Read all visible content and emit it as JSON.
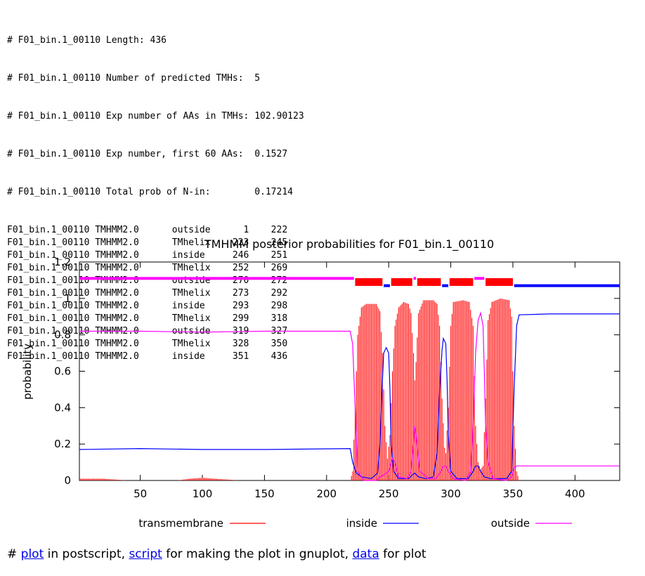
{
  "header_lines": [
    "# F01_bin.1_00110 Length: 436",
    "# F01_bin.1_00110 Number of predicted TMHs:  5",
    "# F01_bin.1_00110 Exp number of AAs in TMHs: 102.90123",
    "# F01_bin.1_00110 Exp number, first 60 AAs:  0.1527",
    "# F01_bin.1_00110 Total prob of N-in:        0.17214"
  ],
  "topology_rows": [
    {
      "id": "F01_bin.1_00110",
      "method": "TMHMM2.0",
      "region": "outside",
      "start": "1",
      "end": "222"
    },
    {
      "id": "F01_bin.1_00110",
      "method": "TMHMM2.0",
      "region": "TMhelix",
      "start": "223",
      "end": "245"
    },
    {
      "id": "F01_bin.1_00110",
      "method": "TMHMM2.0",
      "region": "inside",
      "start": "246",
      "end": "251"
    },
    {
      "id": "F01_bin.1_00110",
      "method": "TMHMM2.0",
      "region": "TMhelix",
      "start": "252",
      "end": "269"
    },
    {
      "id": "F01_bin.1_00110",
      "method": "TMHMM2.0",
      "region": "outside",
      "start": "270",
      "end": "272"
    },
    {
      "id": "F01_bin.1_00110",
      "method": "TMHMM2.0",
      "region": "TMhelix",
      "start": "273",
      "end": "292"
    },
    {
      "id": "F01_bin.1_00110",
      "method": "TMHMM2.0",
      "region": "inside",
      "start": "293",
      "end": "298"
    },
    {
      "id": "F01_bin.1_00110",
      "method": "TMHMM2.0",
      "region": "TMhelix",
      "start": "299",
      "end": "318"
    },
    {
      "id": "F01_bin.1_00110",
      "method": "TMHMM2.0",
      "region": "outside",
      "start": "319",
      "end": "327"
    },
    {
      "id": "F01_bin.1_00110",
      "method": "TMHMM2.0",
      "region": "TMhelix",
      "start": "328",
      "end": "350"
    },
    {
      "id": "F01_bin.1_00110",
      "method": "TMHMM2.0",
      "region": "inside",
      "start": "351",
      "end": "436"
    }
  ],
  "chart_data": {
    "type": "line",
    "title": "TMHMM posterior probabilities for F01_bin.1_00110",
    "xlabel": "",
    "ylabel": "probability",
    "xlim": [
      1,
      436
    ],
    "ylim": [
      0,
      1.2
    ],
    "x_ticks": [
      50,
      100,
      150,
      200,
      250,
      300,
      350,
      400
    ],
    "y_ticks": [
      0,
      0.2,
      0.4,
      0.6,
      0.8,
      1,
      1.2
    ],
    "y_tick_labels": [
      "0",
      "0.2",
      "0.4",
      "0.6",
      "0.8",
      "1",
      "1.2"
    ],
    "grid": false,
    "legend_position": "bottom",
    "series": [
      {
        "name": "transmembrane",
        "color": "#ff0000",
        "style": "impulses",
        "points": [
          [
            1,
            0.0
          ],
          [
            2,
            0.01
          ],
          [
            10,
            0.01
          ],
          [
            20,
            0.01
          ],
          [
            30,
            0.005
          ],
          [
            40,
            0.0
          ],
          [
            60,
            0.0
          ],
          [
            80,
            0.0
          ],
          [
            90,
            0.01
          ],
          [
            100,
            0.015
          ],
          [
            110,
            0.01
          ],
          [
            120,
            0.005
          ],
          [
            130,
            0.0
          ],
          [
            200,
            0.0
          ],
          [
            219,
            0.0
          ],
          [
            221,
            0.05
          ],
          [
            223,
            0.4
          ],
          [
            225,
            0.8
          ],
          [
            228,
            0.95
          ],
          [
            232,
            0.97
          ],
          [
            240,
            0.97
          ],
          [
            243,
            0.93
          ],
          [
            245,
            0.7
          ],
          [
            247,
            0.3
          ],
          [
            249,
            0.12
          ],
          [
            251,
            0.25
          ],
          [
            253,
            0.6
          ],
          [
            255,
            0.85
          ],
          [
            258,
            0.95
          ],
          [
            262,
            0.98
          ],
          [
            266,
            0.97
          ],
          [
            268,
            0.92
          ],
          [
            270,
            0.7
          ],
          [
            271,
            0.55
          ],
          [
            272,
            0.65
          ],
          [
            274,
            0.92
          ],
          [
            278,
            0.99
          ],
          [
            286,
            0.99
          ],
          [
            289,
            0.97
          ],
          [
            291,
            0.85
          ],
          [
            293,
            0.45
          ],
          [
            295,
            0.18
          ],
          [
            296,
            0.15
          ],
          [
            298,
            0.4
          ],
          [
            300,
            0.85
          ],
          [
            302,
            0.98
          ],
          [
            310,
            0.99
          ],
          [
            315,
            0.98
          ],
          [
            318,
            0.85
          ],
          [
            320,
            0.3
          ],
          [
            322,
            0.1
          ],
          [
            324,
            0.06
          ],
          [
            326,
            0.08
          ],
          [
            328,
            0.45
          ],
          [
            330,
            0.88
          ],
          [
            333,
            0.98
          ],
          [
            340,
            1.0
          ],
          [
            347,
            0.99
          ],
          [
            349,
            0.9
          ],
          [
            351,
            0.3
          ],
          [
            353,
            0.05
          ],
          [
            355,
            0.0
          ],
          [
            436,
            0.0
          ]
        ]
      },
      {
        "name": "inside",
        "color": "#0000ff",
        "style": "line",
        "points": [
          [
            1,
            0.17
          ],
          [
            50,
            0.175
          ],
          [
            100,
            0.17
          ],
          [
            150,
            0.17
          ],
          [
            219,
            0.175
          ],
          [
            221,
            0.1
          ],
          [
            224,
            0.04
          ],
          [
            228,
            0.02
          ],
          [
            236,
            0.01
          ],
          [
            241,
            0.04
          ],
          [
            243,
            0.2
          ],
          [
            245,
            0.55
          ],
          [
            246,
            0.7
          ],
          [
            248,
            0.73
          ],
          [
            250,
            0.7
          ],
          [
            251,
            0.5
          ],
          [
            252,
            0.2
          ],
          [
            254,
            0.05
          ],
          [
            258,
            0.01
          ],
          [
            266,
            0.01
          ],
          [
            269,
            0.03
          ],
          [
            271,
            0.04
          ],
          [
            274,
            0.02
          ],
          [
            280,
            0.01
          ],
          [
            286,
            0.02
          ],
          [
            289,
            0.15
          ],
          [
            291,
            0.5
          ],
          [
            293,
            0.72
          ],
          [
            294,
            0.78
          ],
          [
            296,
            0.75
          ],
          [
            297,
            0.55
          ],
          [
            298,
            0.25
          ],
          [
            300,
            0.05
          ],
          [
            305,
            0.01
          ],
          [
            314,
            0.01
          ],
          [
            318,
            0.05
          ],
          [
            320,
            0.08
          ],
          [
            322,
            0.08
          ],
          [
            324,
            0.05
          ],
          [
            327,
            0.02
          ],
          [
            332,
            0.01
          ],
          [
            345,
            0.01
          ],
          [
            349,
            0.05
          ],
          [
            351,
            0.5
          ],
          [
            353,
            0.85
          ],
          [
            355,
            0.91
          ],
          [
            380,
            0.915
          ],
          [
            436,
            0.915
          ]
        ]
      },
      {
        "name": "outside",
        "color": "#ff00ff",
        "style": "line",
        "points": [
          [
            1,
            0.82
          ],
          [
            50,
            0.82
          ],
          [
            100,
            0.815
          ],
          [
            150,
            0.82
          ],
          [
            219,
            0.82
          ],
          [
            221,
            0.75
          ],
          [
            223,
            0.4
          ],
          [
            225,
            0.05
          ],
          [
            230,
            0.0
          ],
          [
            240,
            0.0
          ],
          [
            243,
            0.02
          ],
          [
            246,
            0.03
          ],
          [
            250,
            0.05
          ],
          [
            253,
            0.12
          ],
          [
            255,
            0.1
          ],
          [
            258,
            0.02
          ],
          [
            265,
            0.01
          ],
          [
            268,
            0.05
          ],
          [
            270,
            0.2
          ],
          [
            271,
            0.3
          ],
          [
            272,
            0.25
          ],
          [
            275,
            0.05
          ],
          [
            282,
            0.01
          ],
          [
            288,
            0.01
          ],
          [
            292,
            0.05
          ],
          [
            294,
            0.08
          ],
          [
            296,
            0.08
          ],
          [
            298,
            0.05
          ],
          [
            302,
            0.01
          ],
          [
            312,
            0.0
          ],
          [
            316,
            0.05
          ],
          [
            318,
            0.3
          ],
          [
            320,
            0.7
          ],
          [
            322,
            0.88
          ],
          [
            324,
            0.92
          ],
          [
            326,
            0.85
          ],
          [
            327,
            0.6
          ],
          [
            328,
            0.3
          ],
          [
            330,
            0.1
          ],
          [
            334,
            0.01
          ],
          [
            345,
            0.0
          ],
          [
            349,
            0.02
          ],
          [
            351,
            0.07
          ],
          [
            353,
            0.08
          ],
          [
            436,
            0.08
          ]
        ]
      }
    ],
    "topology_bar": {
      "segments": [
        {
          "region": "outside",
          "start": 1,
          "end": 222
        },
        {
          "region": "TMhelix",
          "start": 223,
          "end": 245
        },
        {
          "region": "inside",
          "start": 246,
          "end": 251
        },
        {
          "region": "TMhelix",
          "start": 252,
          "end": 269
        },
        {
          "region": "outside",
          "start": 270,
          "end": 272
        },
        {
          "region": "TMhelix",
          "start": 273,
          "end": 292
        },
        {
          "region": "inside",
          "start": 293,
          "end": 298
        },
        {
          "region": "TMhelix",
          "start": 299,
          "end": 318
        },
        {
          "region": "outside",
          "start": 319,
          "end": 327
        },
        {
          "region": "TMhelix",
          "start": 328,
          "end": 350
        },
        {
          "region": "inside",
          "start": 351,
          "end": 436
        }
      ],
      "colors": {
        "TMhelix": "#ff0000",
        "inside": "#0000ff",
        "outside": "#ff00ff"
      },
      "levels": {
        "TMhelix": 1.09,
        "inside": 1.07,
        "outside": 1.11
      }
    }
  },
  "footer": {
    "prefix": "# ",
    "plot_link": "plot",
    "text1": " in postscript, ",
    "script_link": "script",
    "text2": " for making the plot in gnuplot, ",
    "data_link": "data",
    "text3": " for plot"
  }
}
